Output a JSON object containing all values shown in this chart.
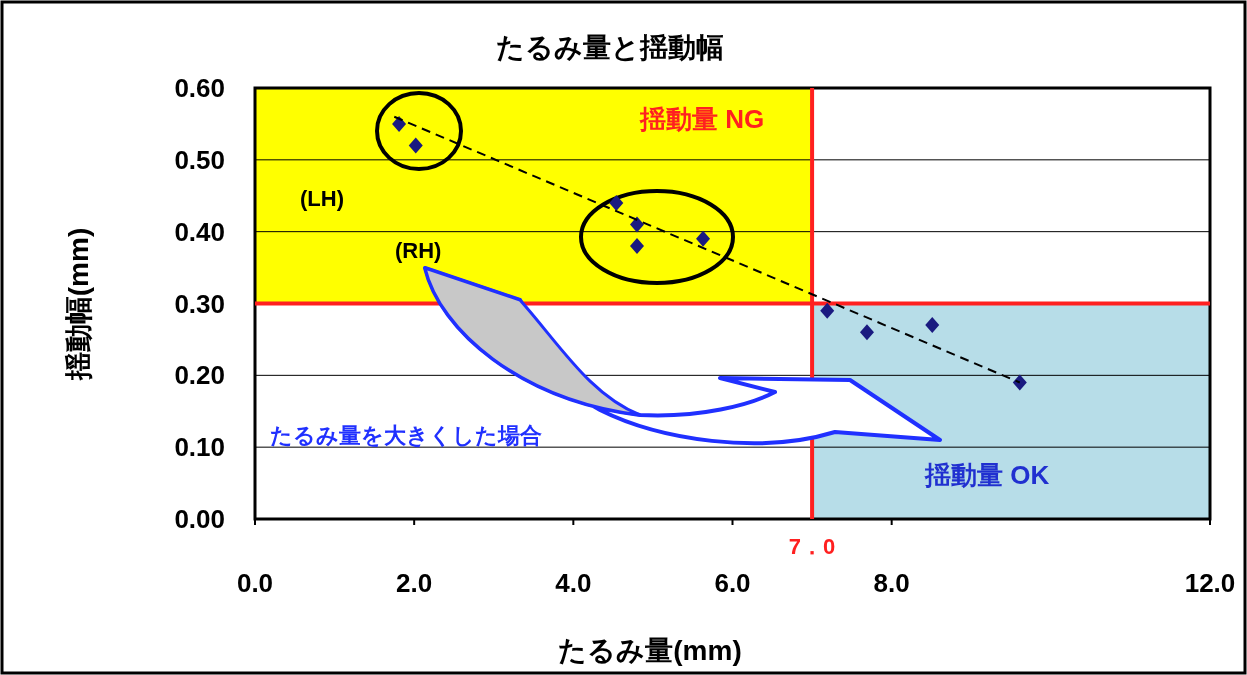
{
  "chart_data": {
    "type": "scatter",
    "title": "たるみ量と揺動幅",
    "xlabel": "たるみ量(mm)",
    "ylabel": "揺動幅(mm)",
    "xlim": [
      0,
      12
    ],
    "ylim": [
      0,
      0.6
    ],
    "xticks": [
      {
        "value": 0,
        "label": "0.0"
      },
      {
        "value": 2,
        "label": "2.0"
      },
      {
        "value": 4,
        "label": "4.0"
      },
      {
        "value": 6,
        "label": "6.0"
      },
      {
        "value": 8,
        "label": "8.0"
      },
      {
        "value": 12,
        "label": "12.0"
      }
    ],
    "yticks": [
      {
        "value": 0,
        "label": "0.00"
      },
      {
        "value": 0.1,
        "label": "0.10"
      },
      {
        "value": 0.2,
        "label": "0.20"
      },
      {
        "value": 0.3,
        "label": "0.30"
      },
      {
        "value": 0.4,
        "label": "0.40"
      },
      {
        "value": 0.5,
        "label": "0.50"
      },
      {
        "value": 0.6,
        "label": "0.60"
      }
    ],
    "grid": "y",
    "series": [
      {
        "color": "#1a1a80",
        "marker": "diamond",
        "x": [
          1.81,
          2.02,
          4.54,
          4.8,
          4.8,
          5.63,
          7.19,
          7.69,
          8.51,
          9.61
        ],
        "values": [
          0.55,
          0.52,
          0.44,
          0.41,
          0.38,
          0.39,
          0.29,
          0.26,
          0.27,
          0.19
        ]
      },
      {
        "type": "line",
        "color": "#000000",
        "line_style": "dashed",
        "marker": "none",
        "x": [
          1.75,
          9.61
        ],
        "values": [
          0.56,
          0.19
        ]
      }
    ],
    "bands": [
      {
        "axis": "y",
        "from": 0.3,
        "to": 0.6,
        "color": "#ffff00",
        "label": "揺動量 NG"
      },
      {
        "axis": "y",
        "from": 0,
        "to": 0.3,
        "color": "#b7dde8",
        "label": "揺動量 OK"
      }
    ],
    "ref_lines": [
      {
        "axis": "x",
        "value": 7,
        "label": "7．0",
        "color": "#ff2020"
      },
      {
        "axis": "y",
        "value": 0.3,
        "color": "#ff2020"
      }
    ],
    "annotations": [
      "(LH)",
      "(RH)",
      "たるみ量を大きくした場合"
    ]
  }
}
